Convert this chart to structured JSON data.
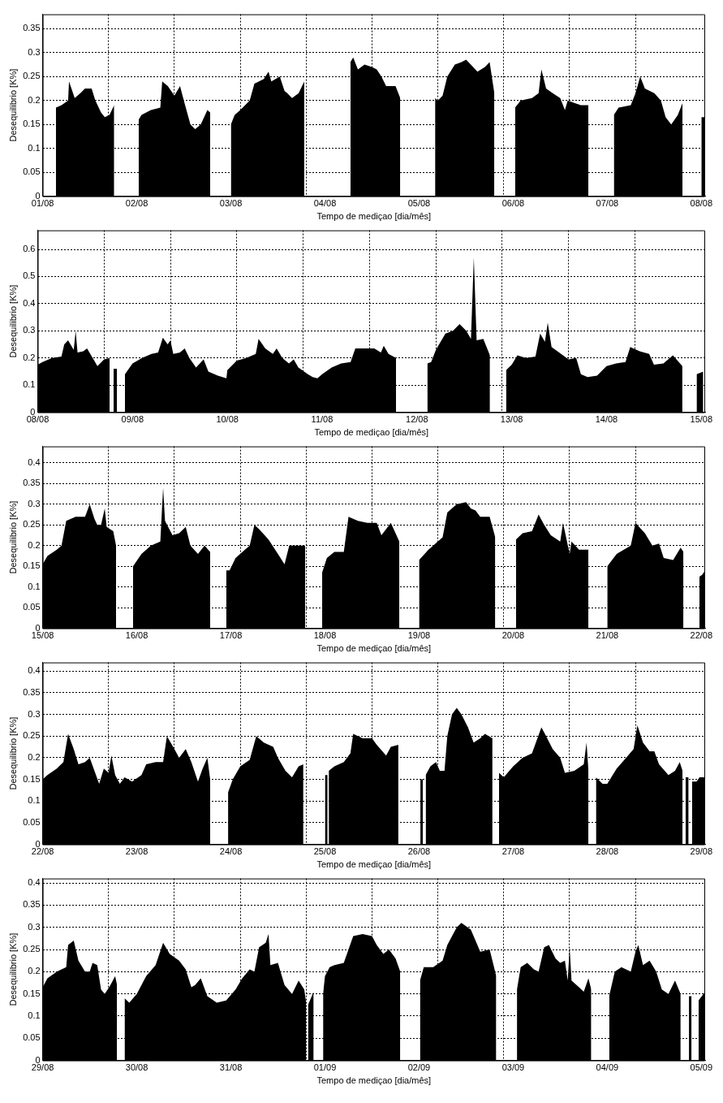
{
  "chart_data": [
    {
      "type": "area",
      "color": "#000000",
      "xlabel": "Tempo de mediçao [dia/mês]",
      "ylabel": "Desequilibrio [K%]",
      "grid": true,
      "xlim": [
        "--08-01",
        "--08-08T00:58"
      ],
      "ylim": [
        0,
        0.38
      ],
      "yticks": [
        0,
        0.05,
        0.1,
        0.15,
        0.2,
        0.25,
        0.3,
        0.35
      ],
      "xticks": [
        {
          "value": "--08-01",
          "label": "01/08"
        },
        {
          "value": "--08-01T16:48",
          "label": null
        },
        {
          "value": "--08-02",
          "label": "02/08"
        },
        {
          "value": "--08-02T09:36",
          "label": null
        },
        {
          "value": "--08-03",
          "label": "03/08"
        },
        {
          "value": "--08-03T02:24",
          "label": null
        },
        {
          "value": "--08-03T19:12",
          "label": null
        },
        {
          "value": "--08-04",
          "label": "04/08"
        },
        {
          "value": "--08-04T12:00",
          "label": null
        },
        {
          "value": "--08-05",
          "label": "05/08"
        },
        {
          "value": "--08-05T04:48",
          "label": null
        },
        {
          "value": "--08-05T21:36",
          "label": null
        },
        {
          "value": "--08-06",
          "label": "06/08"
        },
        {
          "value": "--08-06T14:24",
          "label": null
        },
        {
          "value": "--08-07",
          "label": "07/08"
        },
        {
          "value": "--08-07T07:12",
          "label": null
        },
        {
          "value": "--08-08",
          "label": "08/08"
        }
      ],
      "x": [
        "--08-01T03:22",
        "--08-01T04:48",
        "--08-01T06:29",
        "--08-01T06:43",
        "--08-01T08:10",
        "--08-01T09:36",
        "--08-01T10:48",
        "--08-01T12:29",
        "--08-01T13:26",
        "--08-01T14:53",
        "--08-01T15:50",
        "--08-01T17:02",
        "--08-01T18:14",
        "--08-01T19:12",
        "--08-02T00:29",
        "--08-02T01:12",
        "--08-02T03:36",
        "--08-02T06:00",
        "--08-02T06:29",
        "--08-02T07:55",
        "--08-02T09:36",
        "--08-02T11:02",
        "--08-02T12:00",
        "--08-02T13:41",
        "--08-02T14:53",
        "--08-02T16:19",
        "--08-02T18:00",
        "--08-02T18:43",
        "--08-02T20:24",
        "--08-03T00:00",
        "--08-03T00:58",
        "--08-03T02:24",
        "--08-03T04:48",
        "--08-03T06:00",
        "--08-03T08:24",
        "--08-03T09:36",
        "--08-03T10:19",
        "--08-03T12:29",
        "--08-03T13:41",
        "--08-03T14:24",
        "--08-03T15:36",
        "--08-03T17:17",
        "--08-03T18:43",
        "--08-03T20:24",
        "--08-04T06:29",
        "--08-04T07:12",
        "--08-04T08:24",
        "--08-04T10:05",
        "--08-04T12:00",
        "--08-04T13:12",
        "--08-04T14:24",
        "--08-04T15:36",
        "--08-04T18:00",
        "--08-04T19:12",
        "--08-04T20:24",
        "--08-05T04:05",
        "--08-05T04:48",
        "--08-05T06:00",
        "--08-05T07:12",
        "--08-05T09:07",
        "--08-05T10:48",
        "--08-05T12:00",
        "--08-05T13:12",
        "--08-05T14:53",
        "--08-05T16:48",
        "--08-05T18:00",
        "--08-05T19:12",
        "--08-05T20:24",
        "--08-06T00:29",
        "--08-06T01:55",
        "--08-06T04:48",
        "--08-06T06:29",
        "--08-06T07:12",
        "--08-06T08:24",
        "--08-06T10:05",
        "--08-06T12:00",
        "--08-06T13:12",
        "--08-06T13:55",
        "--08-06T15:36",
        "--08-06T17:17",
        "--08-06T19:12",
        "--08-06T20:24",
        "--08-07T01:41",
        "--08-07T02:53",
        "--08-07T06:00",
        "--08-07T07:12",
        "--08-07T08:24",
        "--08-07T09:36",
        "--08-07T12:00",
        "--08-07T13:41",
        "--08-07T14:53",
        "--08-07T16:19",
        "--08-07T18:00",
        "--08-07T19:12",
        "--08-07T21:36",
        "--08-08T00:00",
        "--08-08T00:58"
      ],
      "values": [
        0.185,
        0.19,
        0.2,
        0.24,
        0.205,
        0.215,
        0.225,
        0.225,
        0.2,
        0.175,
        0.165,
        0.17,
        0.19,
        null,
        0.16,
        0.17,
        0.18,
        0.185,
        0.24,
        0.23,
        0.21,
        0.23,
        0.2,
        0.15,
        0.14,
        0.15,
        0.18,
        0.175,
        null,
        0.15,
        0.17,
        0.18,
        0.2,
        0.235,
        0.245,
        0.26,
        0.24,
        0.25,
        0.22,
        0.215,
        0.205,
        0.215,
        0.24,
        null,
        0.28,
        0.29,
        0.265,
        0.275,
        0.27,
        0.265,
        0.25,
        0.23,
        0.23,
        0.205,
        null,
        0.205,
        0.2,
        0.21,
        0.25,
        0.275,
        0.28,
        0.285,
        0.275,
        0.26,
        0.27,
        0.28,
        0.215,
        null,
        0.185,
        0.2,
        0.205,
        0.215,
        0.265,
        0.225,
        0.215,
        0.205,
        0.18,
        0.2,
        0.195,
        0.19,
        0.19,
        null,
        0.17,
        0.185,
        0.19,
        0.215,
        0.25,
        0.225,
        0.215,
        0.2,
        0.165,
        0.15,
        0.17,
        0.195,
        null,
        0.165,
        0.165
      ]
    },
    {
      "type": "area",
      "color": "#000000",
      "xlabel": "Tempo de mediçao [dia/mês]",
      "ylabel": "Desequilibrio [K%]",
      "grid": true,
      "xlim": [
        "--08-08",
        "--08-15T00:58"
      ],
      "ylim": [
        0,
        0.67
      ],
      "yticks": [
        0,
        0.1,
        0.2,
        0.3,
        0.4,
        0.5,
        0.6
      ],
      "xticks": [
        {
          "value": "--08-08",
          "label": "08/08"
        },
        {
          "value": "--08-08T16:48",
          "label": null
        },
        {
          "value": "--08-09",
          "label": "09/08"
        },
        {
          "value": "--08-09T09:36",
          "label": null
        },
        {
          "value": "--08-10",
          "label": "10/08"
        },
        {
          "value": "--08-10T02:24",
          "label": null
        },
        {
          "value": "--08-10T19:12",
          "label": null
        },
        {
          "value": "--08-11",
          "label": "11/08"
        },
        {
          "value": "--08-11T12:00",
          "label": null
        },
        {
          "value": "--08-12",
          "label": "12/08"
        },
        {
          "value": "--08-12T04:48",
          "label": null
        },
        {
          "value": "--08-12T21:36",
          "label": null
        },
        {
          "value": "--08-13",
          "label": "13/08"
        },
        {
          "value": "--08-13T14:24",
          "label": null
        },
        {
          "value": "--08-14",
          "label": "14/08"
        },
        {
          "value": "--08-14T07:12",
          "label": null
        },
        {
          "value": "--08-15",
          "label": "15/08"
        }
      ],
      "x": [
        "--08-08T00:00",
        "--08-08T01:12",
        "--08-08T03:36",
        "--08-08T06:00",
        "--08-08T06:43",
        "--08-08T07:41",
        "--08-08T09:07",
        "--08-08T09:36",
        "--08-08T10:05",
        "--08-08T11:31",
        "--08-08T12:29",
        "--08-08T13:55",
        "--08-08T15:07",
        "--08-08T16:48",
        "--08-08T18:14",
        "--08-08T18:43",
        "--08-08T19:12",
        "--08-08T19:41",
        "--08-08T20:05",
        "--08-08T20:38",
        "--08-08T22:05",
        "--08-09T00:00",
        "--08-09T02:24",
        "--08-09T04:48",
        "--08-09T06:29",
        "--08-09T07:41",
        "--08-09T08:53",
        "--08-09T09:36",
        "--08-09T10:19",
        "--08-09T12:00",
        "--08-09T13:12",
        "--08-09T14:24",
        "--08-09T16:05",
        "--08-09T18:00",
        "--08-09T19:12",
        "--08-09T21:36",
        "--08-09T23:46",
        "--08-10T00:00",
        "--08-10T02:24",
        "--08-10T04:48",
        "--08-10T07:12",
        "--08-10T07:55",
        "--08-10T09:36",
        "--08-10T11:31",
        "--08-10T12:29",
        "--08-10T13:55",
        "--08-10T15:36",
        "--08-10T16:48",
        "--08-10T18:00",
        "--08-10T20:24",
        "--08-10T21:36",
        "--08-10T22:48",
        "--08-11T00:00",
        "--08-11T02:24",
        "--08-11T04:48",
        "--08-11T07:12",
        "--08-11T08:24",
        "--08-11T10:48",
        "--08-11T13:12",
        "--08-11T14:53",
        "--08-11T15:36",
        "--08-11T16:48",
        "--08-11T18:43",
        "--08-11T20:24",
        "--08-12T02:38",
        "--08-12T03:36",
        "--08-12T04:48",
        "--08-12T07:12",
        "--08-12T09:07",
        "--08-12T10:48",
        "--08-12T12:29",
        "--08-12T13:41",
        "--08-12T14:24",
        "--08-12T15:07",
        "--08-12T16:48",
        "--08-12T18:29",
        "--08-12T19:41",
        "--08-12T22:34",
        "--08-13T00:00",
        "--08-13T01:26",
        "--08-13T03:36",
        "--08-13T06:00",
        "--08-13T07:12",
        "--08-13T08:24",
        "--08-13T09:07",
        "--08-13T10:05",
        "--08-13T12:00",
        "--08-13T14:24",
        "--08-13T16:19",
        "--08-13T17:31",
        "--08-13T19:12",
        "--08-13T21:36",
        "--08-14T00:00",
        "--08-14T02:24",
        "--08-14T04:48",
        "--08-14T06:00",
        "--08-14T08:24",
        "--08-14T10:48",
        "--08-14T12:00",
        "--08-14T14:24",
        "--08-14T16:48",
        "--08-14T19:12",
        "--08-14T21:36",
        "--08-14T22:48",
        "--08-15T00:29"
      ],
      "values": [
        0.175,
        0.185,
        0.2,
        0.205,
        0.25,
        0.265,
        0.23,
        0.3,
        0.22,
        0.225,
        0.235,
        0.2,
        0.17,
        0.195,
        0.2,
        null,
        0.16,
        0.16,
        0.16,
        null,
        0.14,
        0.18,
        0.2,
        0.215,
        0.22,
        0.275,
        0.25,
        0.265,
        0.215,
        0.22,
        0.235,
        0.2,
        0.165,
        0.195,
        0.15,
        0.135,
        0.125,
        0.155,
        0.19,
        0.2,
        0.215,
        0.27,
        0.235,
        0.215,
        0.235,
        0.2,
        0.18,
        0.195,
        0.165,
        0.14,
        0.13,
        0.125,
        0.14,
        0.165,
        0.18,
        0.185,
        0.235,
        0.235,
        0.235,
        0.22,
        0.245,
        0.215,
        0.2,
        null,
        0.18,
        0.185,
        0.23,
        0.29,
        0.3,
        0.325,
        0.3,
        0.27,
        0.57,
        0.265,
        0.27,
        0.21,
        null,
        0.155,
        0.175,
        0.21,
        0.2,
        0.205,
        0.29,
        0.26,
        0.33,
        0.24,
        0.22,
        0.195,
        0.2,
        0.14,
        0.13,
        0.135,
        0.17,
        0.18,
        0.185,
        0.24,
        0.225,
        0.215,
        0.175,
        0.18,
        0.21,
        0.17,
        null,
        0.14,
        0.15
      ]
    },
    {
      "type": "area",
      "color": "#000000",
      "xlabel": "Tempo de mediçao [dia/mês]",
      "ylabel": "Desequilibrio [K%]",
      "grid": true,
      "xlim": [
        "--08-15",
        "--08-22T00:58"
      ],
      "ylim": [
        0,
        0.44
      ],
      "yticks": [
        0,
        0.05,
        0.1,
        0.15,
        0.2,
        0.25,
        0.3,
        0.35,
        0.4
      ],
      "xticks": [
        {
          "value": "--08-15",
          "label": "15/08"
        },
        {
          "value": "--08-15T16:48",
          "label": null
        },
        {
          "value": "--08-16",
          "label": "16/08"
        },
        {
          "value": "--08-16T09:36",
          "label": null
        },
        {
          "value": "--08-17",
          "label": "17/08"
        },
        {
          "value": "--08-17T02:24",
          "label": null
        },
        {
          "value": "--08-17T19:12",
          "label": null
        },
        {
          "value": "--08-18",
          "label": "18/08"
        },
        {
          "value": "--08-18T12:00",
          "label": null
        },
        {
          "value": "--08-19",
          "label": "19/08"
        },
        {
          "value": "--08-19T04:48",
          "label": null
        },
        {
          "value": "--08-19T21:36",
          "label": null
        },
        {
          "value": "--08-20",
          "label": "20/08"
        },
        {
          "value": "--08-20T14:24",
          "label": null
        },
        {
          "value": "--08-21",
          "label": "21/08"
        },
        {
          "value": "--08-21T07:12",
          "label": null
        },
        {
          "value": "--08-22",
          "label": "22/08"
        }
      ],
      "x": [
        "--08-15T00:00",
        "--08-15T01:12",
        "--08-15T03:36",
        "--08-15T04:48",
        "--08-15T06:00",
        "--08-15T08:24",
        "--08-15T10:48",
        "--08-15T12:00",
        "--08-15T13:12",
        "--08-15T13:55",
        "--08-15T14:53",
        "--08-15T15:50",
        "--08-15T16:19",
        "--08-15T18:00",
        "--08-15T18:43",
        "--08-15T19:55",
        "--08-15T23:02",
        "--08-16T01:12",
        "--08-16T03:36",
        "--08-16T06:00",
        "--08-16T06:43",
        "--08-16T07:12",
        "--08-16T09:07",
        "--08-16T10:48",
        "--08-16T12:29",
        "--08-16T13:41",
        "--08-16T15:36",
        "--08-16T17:17",
        "--08-16T18:43",
        "--08-16T19:55",
        "--08-16T22:48",
        "--08-16T23:40",
        "--08-17T01:12",
        "--08-17T03:36",
        "--08-17T04:48",
        "--08-17T06:00",
        "--08-17T07:12",
        "--08-17T09:36",
        "--08-17T12:00",
        "--08-17T13:41",
        "--08-17T14:53",
        "--08-17T18:58",
        "--08-17T20:24",
        "--08-17T23:17",
        "--08-18T00:29",
        "--08-18T02:24",
        "--08-18T04:48",
        "--08-18T06:00",
        "--08-18T08:24",
        "--08-18T10:48",
        "--08-18T13:12",
        "--08-18T14:24",
        "--08-18T16:48",
        "--08-18T18:58",
        "--08-18T20:24",
        "--08-19T00:00",
        "--08-19T02:24",
        "--08-19T03:36",
        "--08-19T06:00",
        "--08-19T07:12",
        "--08-19T09:36",
        "--08-19T12:00",
        "--08-19T13:12",
        "--08-19T14:24",
        "--08-19T15:36",
        "--08-19T18:00",
        "--08-19T19:26",
        "--08-19T20:38",
        "--08-20T00:43",
        "--08-20T02:24",
        "--08-20T04:48",
        "--08-20T06:29",
        "--08-20T07:55",
        "--08-20T09:36",
        "--08-20T12:00",
        "--08-20T12:43",
        "--08-20T14:24",
        "--08-20T14:53",
        "--08-20T16:48",
        "--08-20T19:12",
        "--08-20T20:24",
        "--08-21T00:00",
        "--08-21T02:24",
        "--08-21T06:00",
        "--08-21T07:12",
        "--08-21T09:36",
        "--08-21T11:31",
        "--08-21T13:12",
        "--08-21T14:24",
        "--08-21T16:48",
        "--08-21T18:43",
        "--08-21T19:26",
        "--08-21T21:07",
        "--08-21T23:31",
        "--08-22T00:14",
        "--08-22T00:58"
      ],
      "values": [
        0.155,
        0.175,
        0.19,
        0.2,
        0.26,
        0.27,
        0.27,
        0.3,
        0.265,
        0.25,
        0.25,
        0.29,
        0.245,
        0.235,
        0.2,
        null,
        0.15,
        0.18,
        0.2,
        0.21,
        0.34,
        0.26,
        0.225,
        0.23,
        0.245,
        0.2,
        0.18,
        0.2,
        0.185,
        null,
        0.14,
        0.14,
        0.17,
        0.19,
        0.2,
        0.25,
        0.24,
        0.215,
        0.18,
        0.155,
        0.2,
        0.2,
        null,
        0.135,
        0.17,
        0.185,
        0.185,
        0.27,
        0.26,
        0.255,
        0.255,
        0.225,
        0.255,
        0.21,
        null,
        0.165,
        0.19,
        0.2,
        0.22,
        0.28,
        0.3,
        0.305,
        0.29,
        0.285,
        0.27,
        0.27,
        0.22,
        null,
        0.215,
        0.23,
        0.235,
        0.275,
        0.25,
        0.225,
        0.21,
        0.255,
        0.18,
        0.21,
        0.19,
        0.19,
        null,
        0.15,
        0.18,
        0.2,
        0.255,
        0.23,
        0.2,
        0.205,
        0.17,
        0.165,
        0.195,
        0.185,
        null,
        0.125,
        0.13,
        0.14
      ]
    },
    {
      "type": "area",
      "color": "#000000",
      "xlabel": "Tempo de mediçao [dia/mês]",
      "ylabel": "Desequilibrio [K%]",
      "grid": true,
      "xlim": [
        "--08-22",
        "--08-29T00:58"
      ],
      "ylim": [
        0,
        0.42
      ],
      "yticks": [
        0,
        0.05,
        0.1,
        0.15,
        0.2,
        0.25,
        0.3,
        0.35,
        0.4
      ],
      "xticks": [
        {
          "value": "--08-22",
          "label": "22/08"
        },
        {
          "value": "--08-22T16:48",
          "label": null
        },
        {
          "value": "--08-23",
          "label": "23/08"
        },
        {
          "value": "--08-23T09:36",
          "label": null
        },
        {
          "value": "--08-24",
          "label": "24/08"
        },
        {
          "value": "--08-24T02:24",
          "label": null
        },
        {
          "value": "--08-24T19:12",
          "label": null
        },
        {
          "value": "--08-25",
          "label": "25/08"
        },
        {
          "value": "--08-25T12:00",
          "label": null
        },
        {
          "value": "--08-26",
          "label": "26/08"
        },
        {
          "value": "--08-26T04:48",
          "label": null
        },
        {
          "value": "--08-26T21:36",
          "label": null
        },
        {
          "value": "--08-27",
          "label": "27/08"
        },
        {
          "value": "--08-27T14:24",
          "label": null
        },
        {
          "value": "--08-28",
          "label": "28/08"
        },
        {
          "value": "--08-28T07:12",
          "label": null
        },
        {
          "value": "--08-29",
          "label": "29/08"
        }
      ],
      "x": [
        "--08-22T00:00",
        "--08-22T01:12",
        "--08-22T03:36",
        "--08-22T05:17",
        "--08-22T06:29",
        "--08-22T07:55",
        "--08-22T09:07",
        "--08-22T10:48",
        "--08-22T12:00",
        "--08-22T13:12",
        "--08-22T14:24",
        "--08-22T15:36",
        "--08-22T16:48",
        "--08-22T17:31",
        "--08-22T18:29",
        "--08-22T19:41",
        "--08-22T20:53",
        "--08-22T22:48",
        "--08-23T01:12",
        "--08-23T02:24",
        "--08-23T04:48",
        "--08-23T06:43",
        "--08-23T07:41",
        "--08-23T09:36",
        "--08-23T10:48",
        "--08-23T12:29",
        "--08-23T13:55",
        "--08-23T15:36",
        "--08-23T16:48",
        "--08-23T18:00",
        "--08-23T18:43",
        "--08-23T20:24",
        "--08-23T23:17",
        "--08-24T00:29",
        "--08-24T02:24",
        "--08-24T04:48",
        "--08-24T06:29",
        "--08-24T08:24",
        "--08-24T10:48",
        "--08-24T12:00",
        "--08-24T13:55",
        "--08-24T15:36",
        "--08-24T17:17",
        "--08-24T18:29",
        "--08-24T19:41",
        "--08-25T00:00",
        "--08-25T00:20",
        "--08-25T00:40",
        "--08-25T00:50",
        "--08-25T00:58",
        "--08-25T02:24",
        "--08-25T04:48",
        "--08-25T06:29",
        "--08-25T07:12",
        "--08-25T09:36",
        "--08-25T12:00",
        "--08-25T13:12",
        "--08-25T15:36",
        "--08-25T16:48",
        "--08-25T18:43",
        "--08-25T20:24",
        "--08-26T00:20",
        "--08-26T00:40",
        "--08-26T00:58",
        "--08-26T01:12",
        "--08-26T01:41",
        "--08-26T02:53",
        "--08-26T04:19",
        "--08-26T05:17",
        "--08-26T06:29",
        "--08-26T07:12",
        "--08-26T08:24",
        "--08-26T09:36",
        "--08-26T10:48",
        "--08-26T12:29",
        "--08-26T13:55",
        "--08-26T15:36",
        "--08-26T16:48",
        "--08-26T18:43",
        "--08-26T19:41",
        "--08-26T20:24",
        "--08-26T21:36",
        "--08-27T00:00",
        "--08-27T02:24",
        "--08-27T04:48",
        "--08-27T07:12",
        "--08-27T08:24",
        "--08-27T10:05",
        "--08-27T12:00",
        "--08-27T13:12",
        "--08-27T15:36",
        "--08-27T18:00",
        "--08-27T18:43",
        "--08-27T19:12",
        "--08-27T20:38",
        "--08-27T21:07",
        "--08-27T22:48",
        "--08-28T00:00",
        "--08-28T02:24",
        "--08-28T04:48",
        "--08-28T06:43",
        "--08-28T07:41",
        "--08-28T09:07",
        "--08-28T10:48",
        "--08-28T12:00",
        "--08-28T13:12",
        "--08-28T15:36",
        "--08-28T17:17",
        "--08-28T18:29",
        "--08-28T19:12",
        "--08-28T19:55",
        "--08-28T19:58",
        "--08-28T20:20",
        "--08-28T20:45",
        "--08-28T21:07",
        "--08-28T21:36",
        "--08-28T22:48",
        "--08-28T23:31",
        "--08-29T00:58"
      ],
      "values": [
        0.15,
        0.16,
        0.175,
        0.19,
        0.255,
        0.22,
        0.185,
        0.19,
        0.2,
        0.17,
        0.14,
        0.175,
        0.165,
        0.205,
        0.16,
        0.14,
        0.155,
        0.145,
        0.16,
        0.185,
        0.19,
        0.19,
        0.25,
        0.22,
        0.2,
        0.22,
        0.19,
        0.145,
        0.175,
        0.2,
        0.15,
        null,
        0.12,
        0.15,
        0.18,
        0.195,
        0.25,
        0.235,
        0.225,
        0.2,
        0.17,
        0.155,
        0.18,
        0.185,
        null,
        0.16,
        0.16,
        0.16,
        null,
        0.17,
        0.18,
        0.19,
        0.21,
        0.255,
        0.245,
        0.245,
        0.23,
        0.205,
        0.225,
        0.23,
        null,
        0.15,
        0.15,
        0.15,
        null,
        0.16,
        0.18,
        0.19,
        0.17,
        0.17,
        0.25,
        0.3,
        0.315,
        0.3,
        0.27,
        0.235,
        0.245,
        0.255,
        0.245,
        null,
        0.165,
        0.155,
        0.18,
        0.2,
        0.21,
        0.27,
        0.25,
        0.22,
        0.2,
        0.165,
        0.17,
        0.185,
        0.235,
        0.17,
        null,
        0.155,
        0.14,
        0.14,
        0.175,
        0.2,
        0.22,
        0.275,
        0.235,
        0.215,
        0.215,
        0.185,
        0.16,
        0.17,
        0.19,
        0.17,
        null,
        0.155,
        0.155,
        0.155,
        null,
        0.145,
        0.145,
        0.155,
        0.155
      ]
    },
    {
      "type": "area",
      "color": "#000000",
      "xlabel": "Tempo de mediçao [dia/mês]",
      "ylabel": "Desequilibrio [K%]",
      "grid": true,
      "xlim": [
        "--08-29",
        "--09-05T00:58"
      ],
      "ylim": [
        0,
        0.41
      ],
      "yticks": [
        0,
        0.05,
        0.1,
        0.15,
        0.2,
        0.25,
        0.3,
        0.35,
        0.4
      ],
      "xticks": [
        {
          "value": "--08-29",
          "label": "29/08"
        },
        {
          "value": "--08-29T16:48",
          "label": null
        },
        {
          "value": "--08-30",
          "label": "30/08"
        },
        {
          "value": "--08-30T09:36",
          "label": null
        },
        {
          "value": "--08-31",
          "label": "31/08"
        },
        {
          "value": "--08-31T02:24",
          "label": null
        },
        {
          "value": "--08-31T19:12",
          "label": null
        },
        {
          "value": "--09-01",
          "label": "01/09"
        },
        {
          "value": "--09-01T12:00",
          "label": null
        },
        {
          "value": "--09-02",
          "label": "02/09"
        },
        {
          "value": "--09-02T04:48",
          "label": null
        },
        {
          "value": "--09-02T21:36",
          "label": null
        },
        {
          "value": "--09-03",
          "label": "03/09"
        },
        {
          "value": "--09-03T14:24",
          "label": null
        },
        {
          "value": "--09-04",
          "label": "04/09"
        },
        {
          "value": "--09-04T07:12",
          "label": null
        },
        {
          "value": "--09-05",
          "label": "05/09"
        }
      ],
      "x": [
        "--08-29T00:00",
        "--08-29T01:12",
        "--08-29T03:36",
        "--08-29T06:00",
        "--08-29T06:29",
        "--08-29T07:55",
        "--08-29T09:07",
        "--08-29T10:48",
        "--08-29T12:00",
        "--08-29T12:43",
        "--08-29T13:55",
        "--08-29T14:53",
        "--08-29T15:50",
        "--08-29T17:17",
        "--08-29T18:29",
        "--08-29T18:58",
        "--08-29T19:41",
        "--08-29T20:53",
        "--08-29T22:05",
        "--08-30T00:00",
        "--08-30T02:24",
        "--08-30T04:48",
        "--08-30T06:43",
        "--08-30T08:24",
        "--08-30T10:48",
        "--08-30T12:29",
        "--08-30T13:55",
        "--08-30T14:53",
        "--08-30T16:19",
        "--08-30T18:00",
        "--08-30T20:24",
        "--08-30T22:48",
        "--08-31T01:12",
        "--08-31T02:53",
        "--08-31T04:48",
        "--08-31T06:00",
        "--08-31T07:12",
        "--08-31T08:53",
        "--08-31T09:36",
        "--08-31T10:05",
        "--08-31T12:00",
        "--08-31T13:41",
        "--08-31T15:36",
        "--08-31T17:17",
        "--08-31T18:43",
        "--08-31T19:12",
        "--08-31T19:26",
        "--08-31T19:41",
        "--08-31T20:24",
        "--08-31T21:07",
        "--08-31T22:05",
        "--08-31T23:31",
        "--09-01T00:00",
        "--09-01T01:12",
        "--09-01T02:24",
        "--09-01T04:48",
        "--09-01T07:12",
        "--09-01T09:36",
        "--09-01T12:00",
        "--09-01T13:12",
        "--09-01T14:53",
        "--09-01T16:19",
        "--09-01T18:00",
        "--09-01T19:12",
        "--09-01T20:24",
        "--09-02T00:14",
        "--09-02T01:12",
        "--09-02T03:36",
        "--09-02T06:00",
        "--09-02T07:12",
        "--09-02T09:36",
        "--09-02T10:48",
        "--09-02T13:12",
        "--09-02T14:24",
        "--09-02T15:36",
        "--09-02T18:00",
        "--09-02T19:41",
        "--09-02T21:07",
        "--09-03T00:58",
        "--09-03T01:55",
        "--09-03T03:36",
        "--09-03T05:17",
        "--09-03T06:29",
        "--09-03T07:55",
        "--09-03T09:07",
        "--09-03T10:48",
        "--09-03T12:00",
        "--09-03T13:12",
        "--09-03T13:55",
        "--09-03T14:24",
        "--09-03T14:53",
        "--09-03T16:48",
        "--09-03T18:00",
        "--09-03T19:12",
        "--09-03T19:55",
        "--09-03T21:07",
        "--09-04T00:29",
        "--09-04T01:55",
        "--09-04T03:36",
        "--09-04T06:00",
        "--09-04T07:12",
        "--09-04T07:55",
        "--09-04T09:07",
        "--09-04T10:48",
        "--09-04T12:29",
        "--09-04T13:55",
        "--09-04T15:36",
        "--09-04T17:17",
        "--09-04T18:43",
        "--09-04T19:41",
        "--09-04T20:50",
        "--09-04T21:10",
        "--09-04T21:30",
        "--09-04T21:45",
        "--09-04T23:17",
        "--09-05T00:58"
      ],
      "values": [
        0.165,
        0.185,
        0.2,
        0.21,
        0.26,
        0.27,
        0.225,
        0.2,
        0.2,
        0.22,
        0.215,
        0.16,
        0.15,
        0.17,
        0.19,
        0.17,
        null,
        0.14,
        0.13,
        0.15,
        0.19,
        0.215,
        0.265,
        0.24,
        0.225,
        0.205,
        0.165,
        0.17,
        0.185,
        0.145,
        0.13,
        0.135,
        0.16,
        0.185,
        0.205,
        0.2,
        0.255,
        0.265,
        0.285,
        0.215,
        0.22,
        0.17,
        0.15,
        0.18,
        0.16,
        0.13,
        null,
        0.125,
        0.14,
        0.155,
        null,
        0.15,
        0.19,
        0.21,
        0.215,
        0.22,
        0.28,
        0.285,
        0.28,
        0.26,
        0.24,
        0.25,
        0.23,
        0.2,
        null,
        0.18,
        0.21,
        0.21,
        0.225,
        0.26,
        0.3,
        0.31,
        0.295,
        0.27,
        0.245,
        0.25,
        0.19,
        null,
        0.16,
        0.21,
        0.22,
        0.205,
        0.2,
        0.255,
        0.26,
        0.23,
        0.22,
        0.225,
        0.18,
        0.255,
        0.18,
        0.165,
        0.155,
        0.185,
        0.16,
        null,
        0.145,
        0.2,
        0.21,
        0.2,
        0.245,
        0.26,
        0.215,
        0.225,
        0.2,
        0.16,
        0.15,
        0.18,
        0.15,
        null,
        0.145,
        0.145,
        0.145,
        null,
        0.135,
        0.155
      ]
    }
  ]
}
